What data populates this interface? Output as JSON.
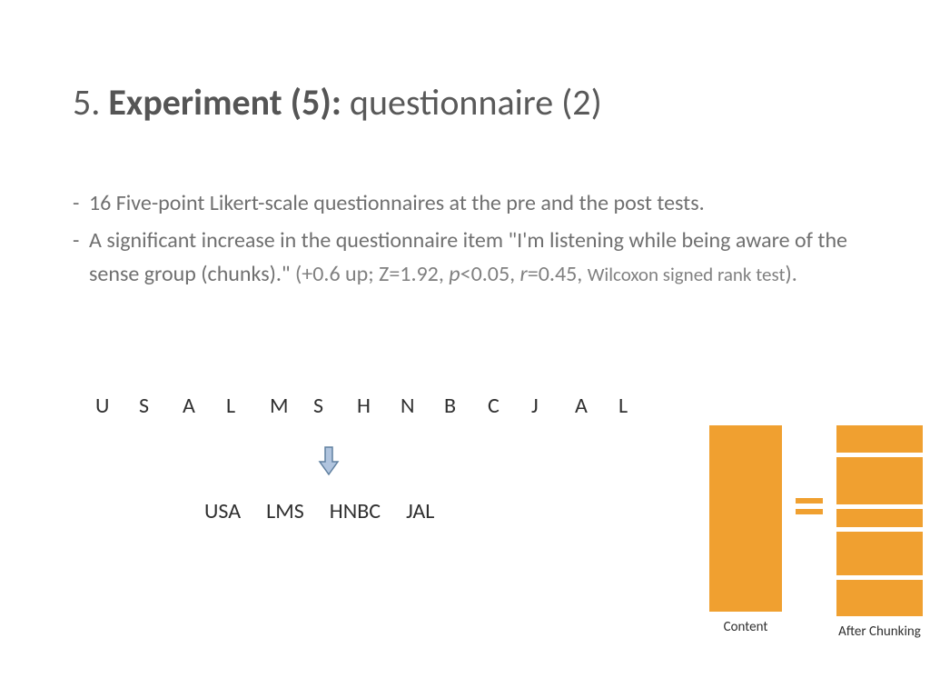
{
  "title": {
    "number": "5.",
    "bold": "Experiment (5):",
    "rest": "questionnaire (2)"
  },
  "bullets": {
    "b1": "16 Five-point Likert-scale questionnaires at the pre and the post tests.",
    "b2a": "A significant increase in the questionnaire item  \"I'm listening while being aware of the sense group (chunks).\"",
    "b2b_open": " (+0.6 up; Z=1.92,",
    "b2c_p": "p",
    "b2c_lt": "<0.05, ",
    "b2c_r": "r",
    "b2c_eq": "=0.45, ",
    "b2c_small": "Wilcoxon signed rank test",
    "b2c_close": ")."
  },
  "letters": [
    "U",
    "S",
    "A",
    "L",
    "M",
    "S",
    "H",
    "N",
    "B",
    "C",
    "J",
    "A",
    "L"
  ],
  "chunks": [
    "USA",
    "LMS",
    "HNBC",
    "JAL"
  ],
  "diagram": {
    "color": "#f0a030",
    "left_bar_height": 205,
    "right_segments": [
      30,
      52,
      20,
      48,
      40
    ],
    "gap": 5,
    "label_left": "Content",
    "label_right": "After Chunking"
  },
  "arrow": {
    "fill": "#b0c4de",
    "stroke": "#6080a0"
  }
}
